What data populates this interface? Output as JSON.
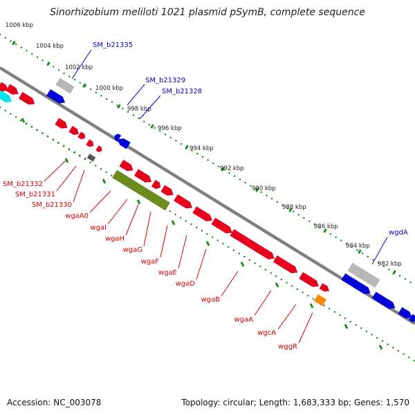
{
  "title": "Sinorhizobium meliloti 1021 plasmid pSymB, complete sequence",
  "footer": {
    "accession": "Accession: NC_003078",
    "summary": "Topology: circular; Length: 1,683,333 bp; Genes: 1,570"
  },
  "colors": {
    "backbone": "#7f7f7f",
    "tick": "#1e8c1e",
    "forward_gene": "#e8001c",
    "reverse_gene": "#0000dd",
    "rna_gene": "#00e5ee",
    "pseudo_gene": "#b8b8b8",
    "dark_gene": "#555555",
    "region": "#6e8b1e",
    "orange_gene": "#ff8c00",
    "label_red": "#d40000",
    "label_blue": "#0000cc"
  },
  "outer_ticks": [
    "1006 kbp",
    "1004 kbp",
    "1002 kbp",
    "1000 kbp",
    "998 kbp",
    "996 kbp",
    "994 kbp",
    "992 kbp",
    "990 kbp",
    "988 kbp",
    "986 kbp",
    "984 kbp",
    "982 kbp"
  ],
  "genes_blue": [
    {
      "label": "SM_b21335"
    },
    {
      "label": "SM_b21329"
    },
    {
      "label": "SM_b21328"
    },
    {
      "label": "wgdA"
    }
  ],
  "genes_red": [
    {
      "label": "SM_b21332"
    },
    {
      "label": "SM_b21331"
    },
    {
      "label": "SM_b21330"
    },
    {
      "label": "wgaA0"
    },
    {
      "label": "wgaI"
    },
    {
      "label": "wgaH"
    },
    {
      "label": "wgaG"
    },
    {
      "label": "wgaF"
    },
    {
      "label": "wgaE"
    },
    {
      "label": "wgaD"
    },
    {
      "label": "wgaB"
    },
    {
      "label": "wgaA"
    },
    {
      "label": "wgcA"
    },
    {
      "label": "wggR"
    }
  ]
}
